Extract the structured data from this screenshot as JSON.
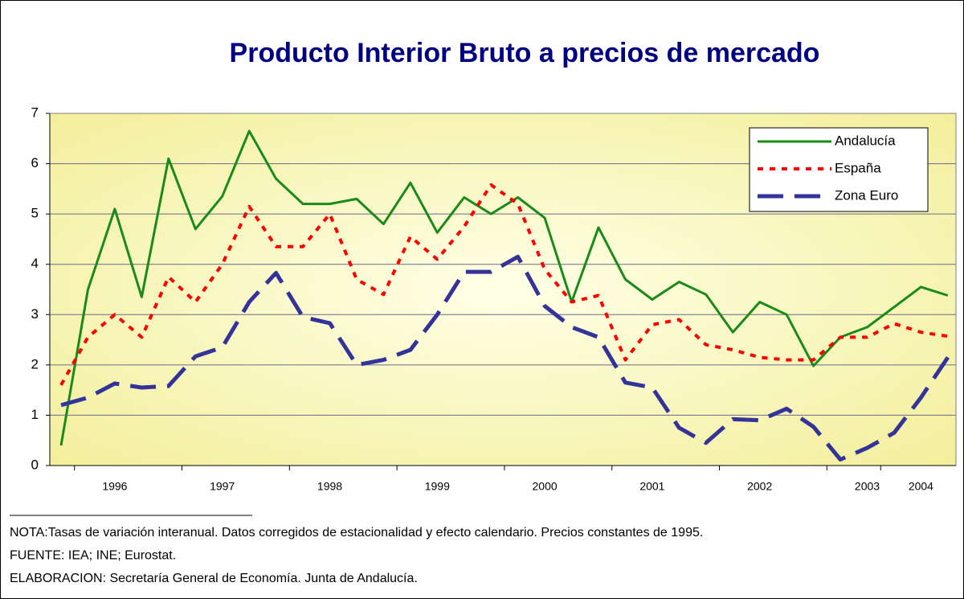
{
  "chart_data": {
    "type": "line",
    "title": "Producto Interior Bruto a precios de mercado",
    "categories": [
      null,
      null,
      "1996",
      null,
      null,
      null,
      "1997",
      null,
      null,
      null,
      "1998",
      null,
      null,
      null,
      "1999",
      null,
      null,
      null,
      "2000",
      null,
      null,
      null,
      "2001",
      null,
      null,
      null,
      "2002",
      null,
      null,
      null,
      "2003",
      null,
      "2004",
      null
    ],
    "series": [
      {
        "name": "Andalucía",
        "color": "#1a8a1a",
        "dash": "solid",
        "values": [
          0.4,
          3.5,
          5.1,
          3.35,
          6.1,
          4.7,
          5.35,
          6.65,
          5.7,
          5.2,
          5.2,
          5.3,
          4.8,
          5.62,
          4.63,
          5.33,
          5.0,
          5.33,
          4.92,
          3.25,
          4.73,
          3.7,
          3.3,
          3.65,
          3.4,
          2.65,
          3.25,
          3.0,
          1.98,
          2.55,
          2.75,
          3.15,
          3.55,
          3.38
        ]
      },
      {
        "name": "España",
        "color": "#ff0000",
        "dash": "dotted",
        "values": [
          1.6,
          2.55,
          3.0,
          2.55,
          3.75,
          3.25,
          4.0,
          5.15,
          4.35,
          4.35,
          5.0,
          3.7,
          3.4,
          4.55,
          4.1,
          4.75,
          5.58,
          5.2,
          3.9,
          3.25,
          3.38,
          2.1,
          2.8,
          2.9,
          2.4,
          2.3,
          2.15,
          2.1,
          2.1,
          2.55,
          2.55,
          2.82,
          2.65,
          2.57
        ]
      },
      {
        "name": "Zona Euro",
        "color": "#333399",
        "dash": "dashed",
        "values": [
          1.2,
          1.35,
          1.63,
          1.55,
          1.58,
          2.17,
          2.35,
          3.25,
          3.83,
          2.95,
          2.83,
          2.0,
          2.1,
          2.3,
          3.0,
          3.85,
          3.85,
          4.15,
          3.17,
          2.75,
          2.55,
          1.65,
          1.55,
          0.75,
          0.45,
          0.92,
          0.9,
          1.13,
          0.77,
          0.12,
          0.35,
          0.65,
          1.35,
          2.15
        ]
      }
    ],
    "ylim": [
      0,
      7
    ],
    "yticks": [
      0,
      1,
      2,
      3,
      4,
      5,
      6,
      7
    ],
    "grid": true,
    "legend": "top-right",
    "notes": [
      "NOTA:Tasas de variación interanual. Datos corregidos de estacionalidad y efecto calendario. Precios constantes de 1995.",
      "FUENTE: IEA; INE; Eurostat.",
      "ELABORACION: Secretaría General de Economía. Junta de Andalucía."
    ]
  }
}
